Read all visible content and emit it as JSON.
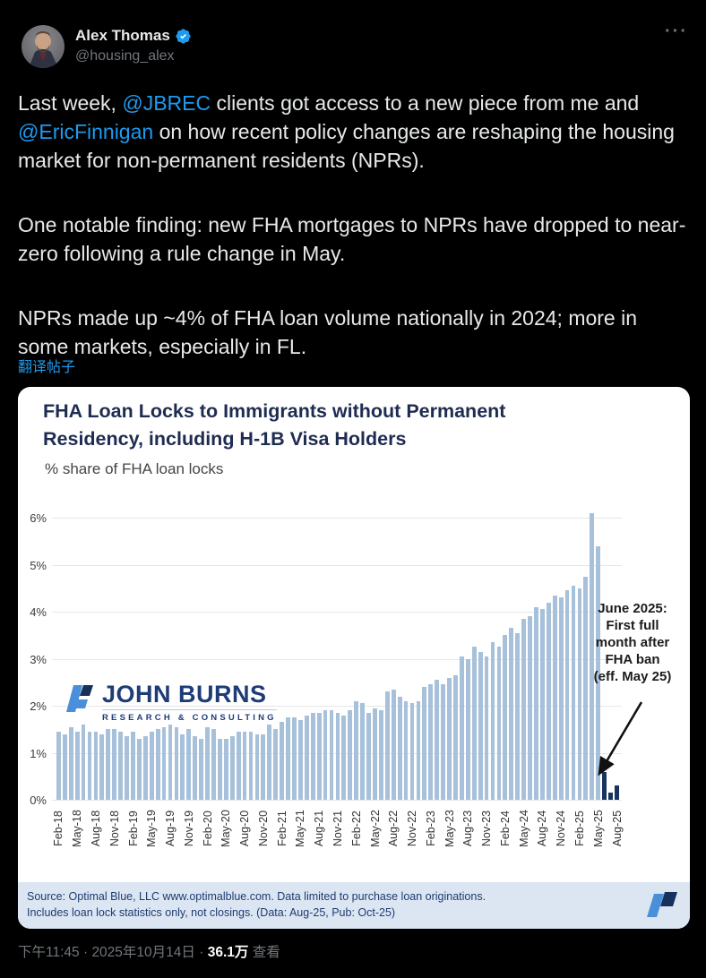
{
  "header": {
    "name": "Alex Thomas",
    "handle": "@housing_alex",
    "more_icon": "···"
  },
  "tweet": {
    "paragraph1_segments": [
      {
        "text": "Last week, ",
        "link": false
      },
      {
        "text": "@JBREC",
        "link": true
      },
      {
        "text": " clients got access to a new piece from me and ",
        "link": false
      },
      {
        "text": "@EricFinnigan",
        "link": true
      },
      {
        "text": " on how recent policy changes are reshaping the housing market for non-permanent residents (NPRs).",
        "link": false
      }
    ],
    "paragraph2": "One notable finding: new FHA mortgages to NPRs have dropped to near-zero following a rule change in May.",
    "paragraph3": "NPRs made up ~4% of FHA loan volume nationally in 2024; more in some markets, especially in FL.",
    "translate_label": "翻译帖子"
  },
  "card": {
    "title": "FHA Loan Locks to Immigrants without Permanent Residency, including H-1B Visa Holders",
    "subtitle": "% share of FHA loan locks",
    "logo_name": "JOHN BURNS",
    "logo_tagline": "RESEARCH & CONSULTING",
    "source_line1": "Source: Optimal Blue, LLC www.optimalblue.com. Data limited to purchase loan originations.",
    "source_line2": "Includes loan lock statistics only, not closings. (Data: Aug-25, Pub: Oct-25)"
  },
  "chart_data": {
    "type": "bar",
    "title": "FHA Loan Locks to Immigrants without Permanent Residency, including H-1B Visa Holders",
    "subtitle": "% share of FHA loan locks",
    "ylabel": "% share of FHA loan locks",
    "ylim": [
      0,
      6
    ],
    "ytick_labels": [
      "0%",
      "1%",
      "2%",
      "3%",
      "4%",
      "5%",
      "6%"
    ],
    "grid": true,
    "legend": "none",
    "x": [
      "Feb-18",
      "Mar-18",
      "Apr-18",
      "May-18",
      "Jun-18",
      "Jul-18",
      "Aug-18",
      "Sep-18",
      "Oct-18",
      "Nov-18",
      "Dec-18",
      "Jan-19",
      "Feb-19",
      "Mar-19",
      "Apr-19",
      "May-19",
      "Jun-19",
      "Jul-19",
      "Aug-19",
      "Sep-19",
      "Oct-19",
      "Nov-19",
      "Dec-19",
      "Jan-20",
      "Feb-20",
      "Mar-20",
      "Apr-20",
      "May-20",
      "Jun-20",
      "Jul-20",
      "Aug-20",
      "Sep-20",
      "Oct-20",
      "Nov-20",
      "Dec-20",
      "Jan-21",
      "Feb-21",
      "Mar-21",
      "Apr-21",
      "May-21",
      "Jun-21",
      "Jul-21",
      "Aug-21",
      "Sep-21",
      "Oct-21",
      "Nov-21",
      "Dec-21",
      "Jan-22",
      "Feb-22",
      "Mar-22",
      "Apr-22",
      "May-22",
      "Jun-22",
      "Jul-22",
      "Aug-22",
      "Sep-22",
      "Oct-22",
      "Nov-22",
      "Dec-22",
      "Jan-23",
      "Feb-23",
      "Mar-23",
      "Apr-23",
      "May-23",
      "Jun-23",
      "Jul-23",
      "Aug-23",
      "Sep-23",
      "Oct-23",
      "Nov-23",
      "Dec-23",
      "Jan-24",
      "Feb-24",
      "Mar-24",
      "Apr-24",
      "May-24",
      "Jun-24",
      "Jul-24",
      "Aug-24",
      "Sep-24",
      "Oct-24",
      "Nov-24",
      "Dec-24",
      "Jan-25",
      "Feb-25",
      "Mar-25",
      "Apr-25",
      "May-25",
      "Jun-25",
      "Jul-25",
      "Aug-25"
    ],
    "values": [
      1.45,
      1.4,
      1.55,
      1.45,
      1.6,
      1.45,
      1.45,
      1.4,
      1.5,
      1.5,
      1.45,
      1.35,
      1.45,
      1.3,
      1.35,
      1.45,
      1.5,
      1.55,
      1.6,
      1.55,
      1.4,
      1.5,
      1.35,
      1.3,
      1.55,
      1.5,
      1.3,
      1.3,
      1.35,
      1.45,
      1.45,
      1.45,
      1.4,
      1.4,
      1.6,
      1.5,
      1.65,
      1.75,
      1.75,
      1.7,
      1.8,
      1.85,
      1.85,
      1.9,
      1.9,
      1.85,
      1.8,
      1.9,
      2.1,
      2.05,
      1.85,
      1.95,
      1.9,
      2.3,
      2.35,
      2.2,
      2.1,
      2.05,
      2.1,
      2.4,
      2.45,
      2.55,
      2.45,
      2.6,
      2.65,
      3.05,
      3.0,
      3.25,
      3.15,
      3.05,
      3.35,
      3.25,
      3.5,
      3.65,
      3.55,
      3.85,
      3.9,
      4.1,
      4.05,
      4.2,
      4.35,
      4.3,
      4.45,
      4.55,
      4.5,
      4.75,
      6.1,
      5.4,
      0.6,
      0.15,
      0.3
    ],
    "xtick_every": 3,
    "xtick_labels": [
      "Feb-18",
      "May-18",
      "Aug-18",
      "Nov-18",
      "Feb-19",
      "May-19",
      "Aug-19",
      "Nov-19",
      "Feb-20",
      "May-20",
      "Aug-20",
      "Nov-20",
      "Feb-21",
      "May-21",
      "Aug-21",
      "Nov-21",
      "Feb-22",
      "May-22",
      "Aug-22",
      "Nov-22",
      "Feb-23",
      "May-23",
      "Aug-23",
      "Nov-23",
      "Feb-24",
      "May-24",
      "Aug-24",
      "Nov-24",
      "Feb-25",
      "May-25",
      "Aug-25"
    ],
    "bar_color": "#a7c1da",
    "highlight_color": "#17345f",
    "highlight_start_index": 88,
    "annotation_lines": [
      "June 2025:",
      "First full",
      "month after",
      "FHA ban",
      "(eff. May 25)"
    ]
  },
  "footer": {
    "time": "下午11:45",
    "separator1": "·",
    "date": "2025年10月14日",
    "separator2": "·",
    "views_count": "36.1万",
    "views_label": "查看"
  },
  "colors": {
    "background": "#000000",
    "text_primary": "#e7e9ea",
    "text_secondary": "#71767b",
    "link": "#1d9bf0",
    "badge_blue": "#1d9bf0",
    "card_bg": "#ffffff",
    "title_navy": "#1f2c52",
    "bar_light": "#a7c1da",
    "bar_dark": "#17345f",
    "source_strip_bg": "#dce6f3",
    "source_text": "#1c3b70"
  }
}
